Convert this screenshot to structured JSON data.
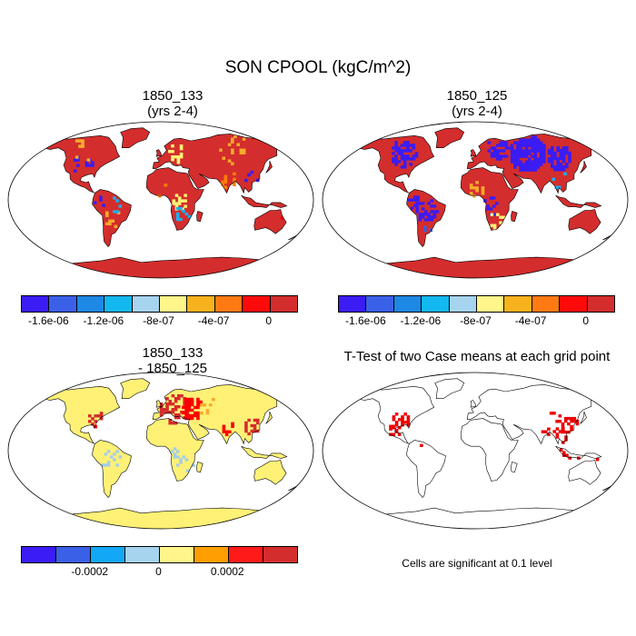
{
  "title": "SON CPOOL (kgC/m^2)",
  "colors": {
    "outline": "#000000",
    "land_default": "#e02020",
    "significant": "#ee0000"
  },
  "panels": [
    {
      "title_line1": "1850_133",
      "title_line2": "(yrs 2-4)",
      "land_color": "#d42d2d",
      "patch_colors": [
        "#ff0000",
        "#3b1cf5",
        "#f7ab2b",
        "#fff176",
        "#1ab0f0",
        "#ff7f00"
      ]
    },
    {
      "title_line1": "1850_125",
      "title_line2": "(yrs 2-4)",
      "land_color": "#d42d2d",
      "patch_colors": [
        "#3b1cf5",
        "#ff0000",
        "#3b60e8",
        "#f7ab2b",
        "#fff176",
        "#1ab0f0"
      ]
    },
    {
      "title_line1": "1850_133",
      "title_line2": "- 1850_125",
      "land_color": "#fff176",
      "patch_colors": [
        "#d42d2d",
        "#ff0000",
        "#a6cee3",
        "#f7ab2b"
      ]
    },
    {
      "title_line1": "T-Test of two Case means at each grid point",
      "title_line2": "",
      "land_color": "#ffffff",
      "patch_colors": [
        "#ee0000"
      ]
    }
  ],
  "colorbars": [
    {
      "colors": [
        "#3b1cf5",
        "#3b60e8",
        "#1e88e5",
        "#12b8ef",
        "#a6d3ee",
        "#fff58a",
        "#f7b21e",
        "#ff7a12",
        "#ff0a0a",
        "#d42d2d"
      ],
      "ticks": [
        "-1.6e-06",
        "-1.2e-06",
        "-8e-07",
        "-4e-07",
        "0"
      ]
    },
    {
      "colors": [
        "#3b1cf5",
        "#3b60e8",
        "#1e88e5",
        "#12b8ef",
        "#a6d3ee",
        "#fff58a",
        "#f7b21e",
        "#ff7a12",
        "#ff0a0a",
        "#d42d2d"
      ],
      "ticks": [
        "-1.6e-06",
        "-1.2e-06",
        "-8e-07",
        "-4e-07",
        "0"
      ]
    },
    {
      "colors": [
        "#3b1cf5",
        "#3b60e8",
        "#12a8f5",
        "#a6d3ee",
        "#fff58a",
        "#ff9e00",
        "#ff1a1a",
        "#d42d2d"
      ],
      "ticks": [
        "-0.0002",
        "0",
        "0.0002"
      ]
    }
  ],
  "significance_note": "Cells are significant at 0.1 level"
}
